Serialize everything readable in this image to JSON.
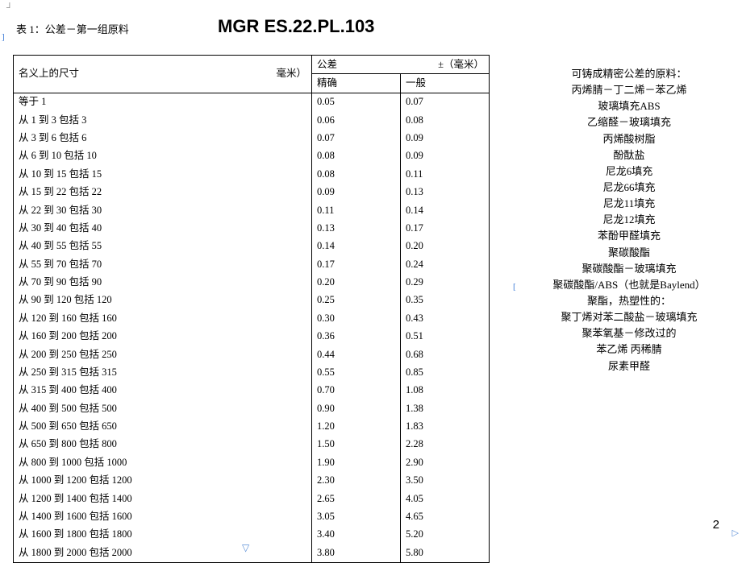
{
  "header": {
    "corner_mark": "┘",
    "caption": "表 1：公差－第一组原料",
    "title": "MGR ES.22.PL.103",
    "left_bracket": "]",
    "right_bracket": "[",
    "page_num": "2",
    "slide_arrow_down": "▽",
    "slide_arrow_right": "▷"
  },
  "table": {
    "h_nominal": "名义上的尺寸",
    "h_nominal_unit": "毫米）",
    "h_tol": "公差",
    "h_tol_unit": "±（毫米）",
    "h_precise": "精确",
    "h_general": "一般",
    "rows": [
      {
        "dim": "等于 1",
        "p": "0.05",
        "g": "0.07"
      },
      {
        "dim": "从 1 到 3 包括 3",
        "p": "0.06",
        "g": "0.08"
      },
      {
        "dim": "从 3 到 6 包括 6",
        "p": "0.07",
        "g": "0.09"
      },
      {
        "dim": "从 6 到 10 包括 10",
        "p": "0.08",
        "g": "0.09"
      },
      {
        "dim": "从 10 到 15 包括 15",
        "p": "0.08",
        "g": "0.11"
      },
      {
        "dim": "从 15 到 22 包括 22",
        "p": "0.09",
        "g": "0.13"
      },
      {
        "dim": "从 22 到 30 包括 30",
        "p": "0.11",
        "g": "0.14"
      },
      {
        "dim": "从 30 到 40 包括 40",
        "p": "0.13",
        "g": "0.17"
      },
      {
        "dim": "从 40 到 55 包括 55",
        "p": "0.14",
        "g": "0.20"
      },
      {
        "dim": "从 55 到 70 包括 70",
        "p": "0.17",
        "g": "0.24"
      },
      {
        "dim": "从 70 到 90 包括 90",
        "p": "0.20",
        "g": "0.29"
      },
      {
        "dim": "从 90 到 120 包括 120",
        "p": "0.25",
        "g": "0.35"
      },
      {
        "dim": "从 120 到 160 包括 160",
        "p": "0.30",
        "g": "0.43"
      },
      {
        "dim": "从 160 到 200 包括 200",
        "p": "0.36",
        "g": "0.51"
      },
      {
        "dim": "从 200 到 250 包括 250",
        "p": "0.44",
        "g": "0.68"
      },
      {
        "dim": "从 250 到 315 包括 315",
        "p": "0.55",
        "g": "0.85"
      },
      {
        "dim": "从 315 到 400 包括 400",
        "p": "0.70",
        "g": "1.08"
      },
      {
        "dim": "从 400 到 500 包括 500",
        "p": "0.90",
        "g": "1.38"
      },
      {
        "dim": "从 500 到 650 包括 650",
        "p": "1.20",
        "g": "1.83"
      },
      {
        "dim": "从 650 到 800 包括 800",
        "p": "1.50",
        "g": "2.28"
      },
      {
        "dim": "从 800 到 1000 包括 1000",
        "p": "1.90",
        "g": "2.90"
      },
      {
        "dim": "从 1000 到 1200 包括 1200",
        "p": "2.30",
        "g": "3.50"
      },
      {
        "dim": "从 1200 到 1400 包括 1400",
        "p": "2.65",
        "g": "4.05"
      },
      {
        "dim": "从 1400 到 1600 包括 1600",
        "p": "3.05",
        "g": "4.65"
      },
      {
        "dim": "从 1600 到 1800 包括 1800",
        "p": "3.40",
        "g": "5.20"
      },
      {
        "dim": "从 1800 到 2000 包括 2000",
        "p": "3.80",
        "g": "5.80"
      }
    ]
  },
  "materials": {
    "title": "可铸成精密公差的原料：",
    "items": [
      "丙烯腈－丁二烯－苯乙烯",
      "玻璃填充ABS",
      "乙缩醛－玻璃填充",
      "丙烯酸树脂",
      "酚酞盐",
      "尼龙6填充",
      "尼龙66填充",
      "尼龙11填充",
      "尼龙12填充",
      "苯酚甲醛填充",
      "聚碳酸酯",
      "聚碳酸酯－玻璃填充",
      "聚碳酸酯/ABS（也就是Baylend）",
      "聚酯，热塑性的：",
      "聚丁烯对苯二酸盐－玻璃填充",
      "聚苯氧基－修改过的",
      "苯乙烯 丙稀腈",
      "尿素甲醛"
    ]
  }
}
